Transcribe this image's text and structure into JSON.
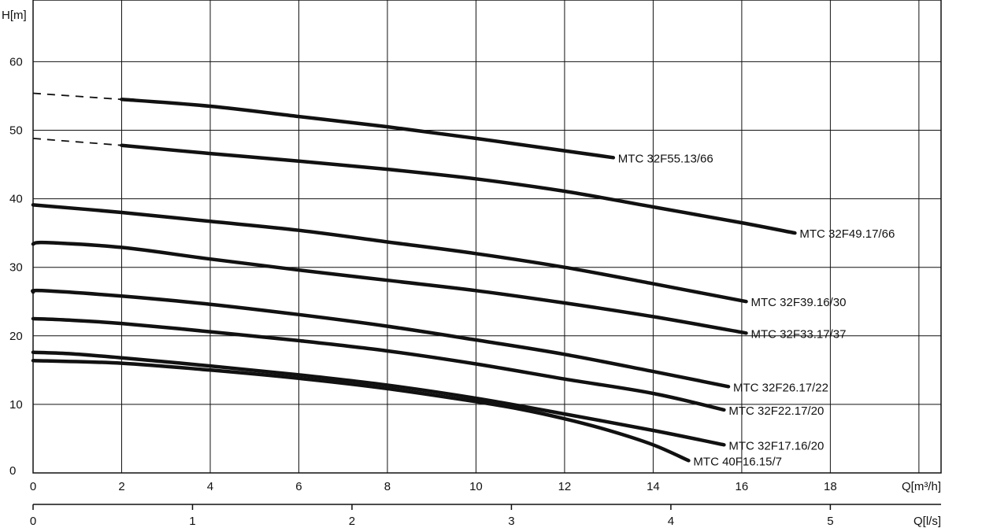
{
  "chart_data": {
    "type": "line",
    "ylabel": "H[m]",
    "xlabel": "Q[m³/h]",
    "x2label": "Q[l/s]",
    "xlim": [
      0,
      20.5
    ],
    "ylim": [
      0,
      69
    ],
    "xticks": [
      0,
      2,
      4,
      6,
      8,
      10,
      12,
      14,
      16,
      18
    ],
    "yticks": [
      0,
      10,
      20,
      30,
      40,
      50,
      60
    ],
    "x2ticks": [
      0,
      1,
      2,
      3,
      4,
      5
    ],
    "grid": true,
    "series": [
      {
        "name": "MTC 32F55.13/66",
        "x": [
          2,
          4,
          6,
          8,
          10,
          12,
          13.1
        ],
        "y": [
          54.5,
          53.5,
          52,
          50.5,
          48.8,
          47,
          46
        ],
        "dashed_start": {
          "x": [
            0,
            2
          ],
          "y": [
            55.4,
            54.5
          ]
        }
      },
      {
        "name": "MTC 32F49.17/66",
        "x": [
          2,
          4,
          6,
          8,
          10,
          12,
          14,
          16,
          17.2
        ],
        "y": [
          47.8,
          46.6,
          45.5,
          44.3,
          42.9,
          41.1,
          38.8,
          36.5,
          35
        ],
        "dashed_start": {
          "x": [
            0,
            2
          ],
          "y": [
            48.8,
            47.8
          ]
        }
      },
      {
        "name": "MTC 32F39.16/30",
        "x": [
          0,
          2,
          4,
          6,
          8,
          10,
          12,
          14,
          16.1
        ],
        "y": [
          39.1,
          38,
          36.7,
          35.4,
          33.7,
          32,
          30,
          27.6,
          25
        ]
      },
      {
        "name": "MTC 32F33.17/37",
        "x": [
          0,
          0.3,
          2,
          4,
          6,
          8,
          10,
          12,
          14,
          16.1
        ],
        "y": [
          33.4,
          33.6,
          32.9,
          31.2,
          29.6,
          28.1,
          26.6,
          24.8,
          22.8,
          20.4
        ]
      },
      {
        "name": "MTC 32F26.17/22",
        "x": [
          0,
          0.2,
          2,
          4,
          6,
          8,
          10,
          12,
          14,
          15.7
        ],
        "y": [
          26.4,
          26.6,
          25.8,
          24.6,
          23.1,
          21.4,
          19.4,
          17.3,
          14.8,
          12.6
        ]
      },
      {
        "name": "MTC 32F22.17/20",
        "x": [
          0,
          0.8,
          2,
          4,
          6,
          8,
          10,
          12,
          14,
          15.6
        ],
        "y": [
          22.5,
          22.3,
          21.8,
          20.6,
          19.3,
          17.8,
          15.9,
          13.7,
          11.6,
          9.2
        ]
      },
      {
        "name": "MTC 32F17.16/20",
        "x": [
          0,
          0.8,
          2,
          4,
          6,
          8,
          10,
          12,
          14,
          15.6
        ],
        "y": [
          17.6,
          17.4,
          16.8,
          15.6,
          14.3,
          12.8,
          10.9,
          8.6,
          6.2,
          4.1
        ]
      },
      {
        "name": "MTC 40F16.15/7",
        "x": [
          0,
          2,
          4,
          6,
          8,
          10,
          11,
          12,
          13,
          14,
          14.8
        ],
        "y": [
          16.4,
          16,
          15,
          13.8,
          12.3,
          10.4,
          9.3,
          7.9,
          6.2,
          4.1,
          1.8
        ]
      }
    ]
  }
}
